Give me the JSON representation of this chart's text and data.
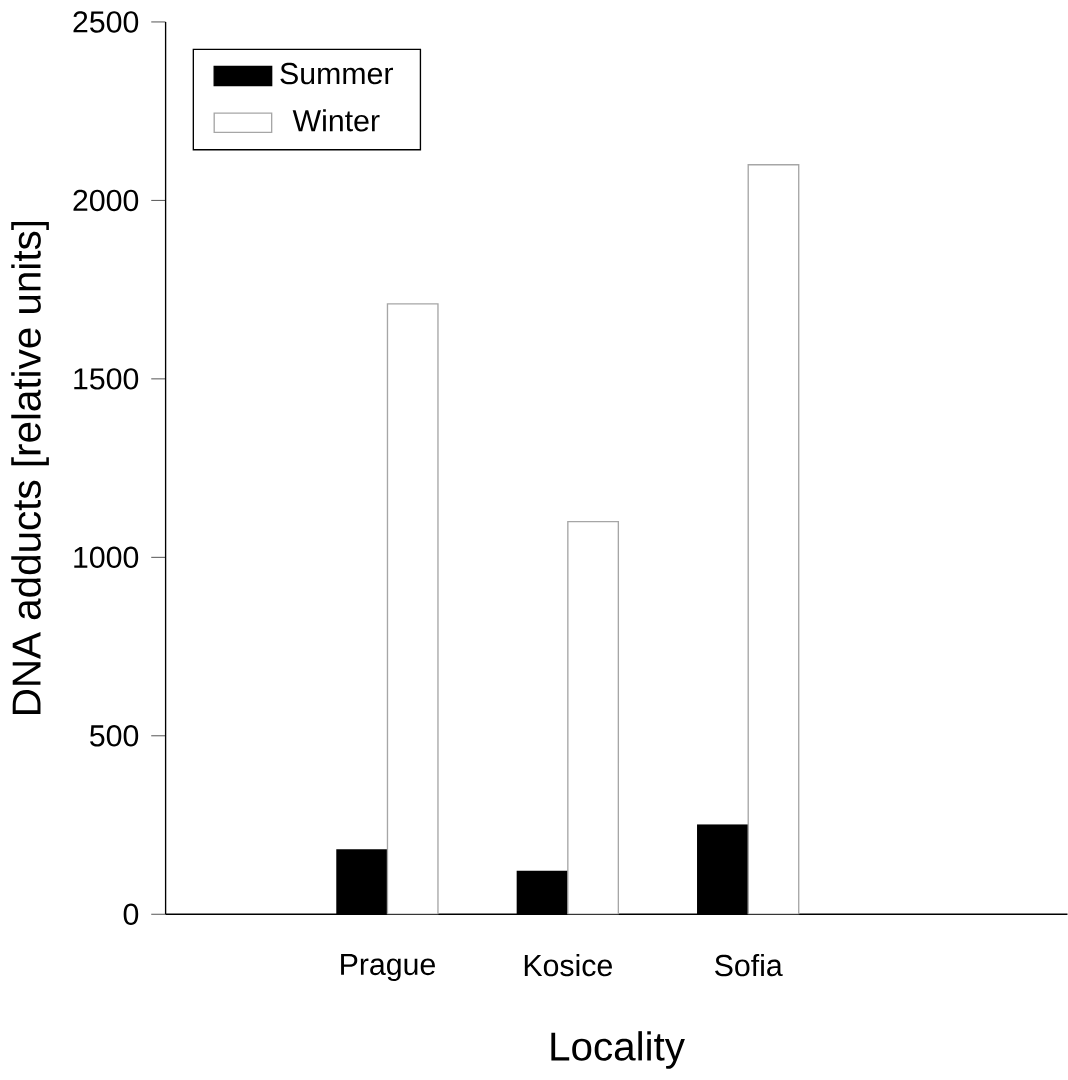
{
  "chart_data": {
    "type": "bar",
    "xlabel": "Locality",
    "ylabel": "DNA adducts [relative units]",
    "categories": [
      "Prague",
      "Kosice",
      "Sofia"
    ],
    "series": [
      {
        "name": "Summer",
        "color": "#000000",
        "values": [
          180,
          120,
          250
        ]
      },
      {
        "name": "Winter",
        "color": "#ffffff",
        "values": [
          1710,
          1100,
          2100
        ]
      }
    ],
    "ylim": [
      0,
      2500
    ],
    "yticks": [
      0,
      500,
      1000,
      1500,
      2000,
      2500
    ],
    "grid": false,
    "legend": "top left"
  }
}
